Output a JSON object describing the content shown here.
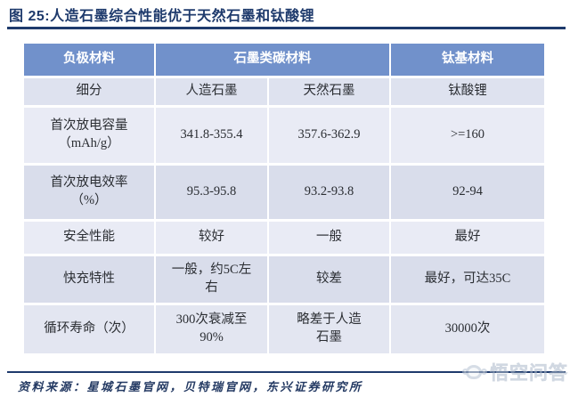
{
  "title": "图 25:人造石墨综合性能优于天然石墨和钛酸锂",
  "table": {
    "header": {
      "col_material": "负极材料",
      "group_graphite": "石墨类碳材料",
      "col_titanium": "钛基材料"
    },
    "subheader": {
      "label": "细分",
      "artificial": "人造石墨",
      "natural": "天然石墨",
      "lto": "钛酸锂"
    },
    "rows": [
      {
        "label": "首次放电容量\n（mAh/g）",
        "values": [
          "341.8-355.4",
          "357.6-362.9",
          ">=160"
        ]
      },
      {
        "label": "首次放电效率\n（%）",
        "values": [
          "95.3-95.8",
          "93.2-93.8",
          "92-94"
        ]
      },
      {
        "label": "安全性能",
        "values": [
          "较好",
          "一般",
          "最好"
        ]
      },
      {
        "label": "快充特性",
        "values": [
          "一般，约5C左\n右",
          "较差",
          "最好，可达35C"
        ]
      },
      {
        "label": "循环寿命（次）",
        "values": [
          "300次衰减至\n90%",
          "略差于人造\n石墨",
          "30000次"
        ]
      }
    ]
  },
  "source": "资料来源：星城石墨官网，贝特瑞官网，东兴证券研究所",
  "watermark": {
    "text": "悟空问答"
  },
  "colors": {
    "title_text": "#1e3a6c",
    "rule": "#1e3a6c",
    "header_bg": "#7191cb",
    "header_text": "#ffffff",
    "row_light": "#e9ebf5",
    "row_mid": "#dee2ef",
    "row_dark": "#d9ddeb",
    "cell_text": "#2b2e33",
    "watermark": "#b6c2d2"
  }
}
